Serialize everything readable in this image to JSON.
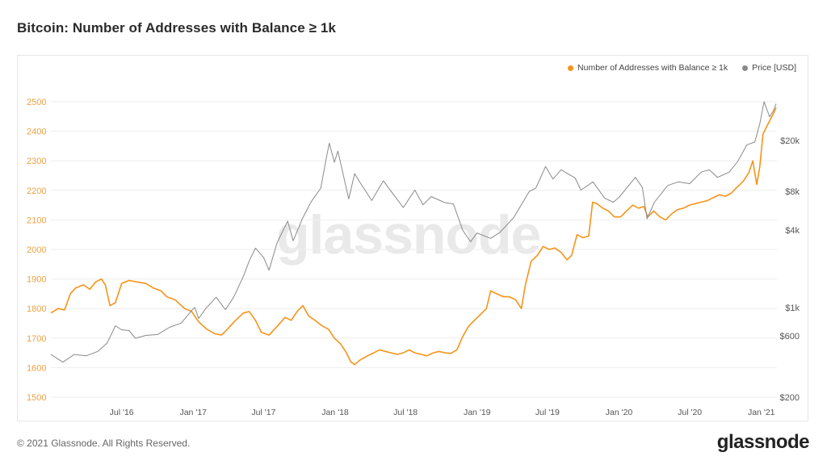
{
  "page": {
    "title": "Bitcoin: Number of Addresses with Balance ≥ 1k",
    "copyright": "© 2021 Glassnode. All Rights Reserved.",
    "brand": "glassnode",
    "watermark": "glassnode"
  },
  "colors": {
    "addresses": "#f7931a",
    "price": "#8a8a8a",
    "left_axis_text": "#f0a040",
    "right_axis_text": "#555555",
    "x_axis_text": "#555555"
  },
  "legend": [
    {
      "label": "Number of Addresses with Balance ≥ 1k",
      "color": "#f7931a"
    },
    {
      "label": "Price [USD]",
      "color": "#8a8a8a"
    }
  ],
  "chart_data": {
    "type": "line",
    "title": "Bitcoin: Number of Addresses with Balance ≥ 1k",
    "x_range": [
      "2016-01-01",
      "2021-02-10"
    ],
    "x_ticks": [
      {
        "date": "2016-07-01",
        "label": "Jul '16"
      },
      {
        "date": "2017-01-01",
        "label": "Jan '17"
      },
      {
        "date": "2017-07-01",
        "label": "Jul '17"
      },
      {
        "date": "2018-01-01",
        "label": "Jan '18"
      },
      {
        "date": "2018-07-01",
        "label": "Jul '18"
      },
      {
        "date": "2019-01-01",
        "label": "Jan '19"
      },
      {
        "date": "2019-07-01",
        "label": "Jul '19"
      },
      {
        "date": "2020-01-01",
        "label": "Jan '20"
      },
      {
        "date": "2020-07-01",
        "label": "Jul '20"
      },
      {
        "date": "2021-01-01",
        "label": "Jan '21"
      }
    ],
    "y_left": {
      "range": [
        1500,
        2500
      ],
      "ticks": [
        1500,
        1600,
        1700,
        1800,
        1900,
        2000,
        2100,
        2200,
        2300,
        2400,
        2500
      ],
      "labels": [
        "1500",
        "1600",
        "1700",
        "1800",
        "1900",
        "2000",
        "2100",
        "2200",
        "2300",
        "2400",
        "2500"
      ]
    },
    "y_right": {
      "scale": "log",
      "range": [
        200,
        40000
      ],
      "ticks": [
        200,
        600,
        1000,
        4000,
        8000,
        20000
      ],
      "labels": [
        "$200",
        "$600",
        "$1k",
        "$4k",
        "$8k",
        "$20k"
      ]
    },
    "grid": "horizontal",
    "legend_position": "top-right",
    "series": [
      {
        "name": "Number of Addresses with Balance ≥ 1k",
        "axis": "left",
        "color": "#f7931a",
        "points": [
          [
            "2016-01-01",
            1785
          ],
          [
            "2016-01-20",
            1800
          ],
          [
            "2016-02-05",
            1795
          ],
          [
            "2016-02-20",
            1850
          ],
          [
            "2016-03-05",
            1870
          ],
          [
            "2016-03-25",
            1880
          ],
          [
            "2016-04-10",
            1865
          ],
          [
            "2016-04-25",
            1890
          ],
          [
            "2016-05-10",
            1900
          ],
          [
            "2016-05-20",
            1880
          ],
          [
            "2016-06-01",
            1810
          ],
          [
            "2016-06-15",
            1820
          ],
          [
            "2016-07-01",
            1885
          ],
          [
            "2016-07-20",
            1895
          ],
          [
            "2016-08-10",
            1890
          ],
          [
            "2016-09-01",
            1885
          ],
          [
            "2016-09-20",
            1870
          ],
          [
            "2016-10-10",
            1860
          ],
          [
            "2016-10-25",
            1840
          ],
          [
            "2016-11-15",
            1830
          ],
          [
            "2016-12-10",
            1800
          ],
          [
            "2016-12-28",
            1790
          ],
          [
            "2017-01-15",
            1755
          ],
          [
            "2017-02-05",
            1730
          ],
          [
            "2017-02-25",
            1715
          ],
          [
            "2017-03-15",
            1710
          ],
          [
            "2017-03-30",
            1730
          ],
          [
            "2017-04-20",
            1760
          ],
          [
            "2017-05-10",
            1785
          ],
          [
            "2017-05-25",
            1790
          ],
          [
            "2017-06-10",
            1760
          ],
          [
            "2017-06-25",
            1720
          ],
          [
            "2017-07-15",
            1710
          ],
          [
            "2017-08-05",
            1740
          ],
          [
            "2017-08-25",
            1770
          ],
          [
            "2017-09-10",
            1760
          ],
          [
            "2017-09-25",
            1790
          ],
          [
            "2017-10-10",
            1810
          ],
          [
            "2017-10-25",
            1775
          ],
          [
            "2017-11-10",
            1760
          ],
          [
            "2017-11-30",
            1740
          ],
          [
            "2017-12-15",
            1730
          ],
          [
            "2017-12-30",
            1700
          ],
          [
            "2018-01-15",
            1680
          ],
          [
            "2018-01-30",
            1650
          ],
          [
            "2018-02-10",
            1620
          ],
          [
            "2018-02-20",
            1610
          ],
          [
            "2018-03-05",
            1625
          ],
          [
            "2018-03-25",
            1640
          ],
          [
            "2018-04-10",
            1650
          ],
          [
            "2018-04-25",
            1660
          ],
          [
            "2018-05-10",
            1655
          ],
          [
            "2018-05-25",
            1650
          ],
          [
            "2018-06-10",
            1645
          ],
          [
            "2018-06-25",
            1650
          ],
          [
            "2018-07-10",
            1660
          ],
          [
            "2018-07-25",
            1650
          ],
          [
            "2018-08-10",
            1645
          ],
          [
            "2018-08-25",
            1640
          ],
          [
            "2018-09-10",
            1650
          ],
          [
            "2018-09-25",
            1655
          ],
          [
            "2018-10-10",
            1650
          ],
          [
            "2018-10-25",
            1648
          ],
          [
            "2018-11-10",
            1660
          ],
          [
            "2018-11-25",
            1705
          ],
          [
            "2018-12-10",
            1740
          ],
          [
            "2018-12-25",
            1760
          ],
          [
            "2019-01-10",
            1780
          ],
          [
            "2019-01-25",
            1800
          ],
          [
            "2019-02-05",
            1860
          ],
          [
            "2019-02-20",
            1850
          ],
          [
            "2019-03-10",
            1840
          ],
          [
            "2019-03-25",
            1840
          ],
          [
            "2019-04-10",
            1830
          ],
          [
            "2019-04-25",
            1800
          ],
          [
            "2019-05-05",
            1880
          ],
          [
            "2019-05-20",
            1960
          ],
          [
            "2019-06-05",
            1980
          ],
          [
            "2019-06-20",
            2010
          ],
          [
            "2019-07-05",
            2000
          ],
          [
            "2019-07-20",
            2005
          ],
          [
            "2019-08-05",
            1990
          ],
          [
            "2019-08-20",
            1965
          ],
          [
            "2019-09-01",
            1980
          ],
          [
            "2019-09-15",
            2050
          ],
          [
            "2019-09-30",
            2040
          ],
          [
            "2019-10-15",
            2045
          ],
          [
            "2019-10-25",
            2160
          ],
          [
            "2019-11-05",
            2155
          ],
          [
            "2019-11-20",
            2140
          ],
          [
            "2019-12-05",
            2130
          ],
          [
            "2019-12-20",
            2110
          ],
          [
            "2020-01-05",
            2110
          ],
          [
            "2020-01-20",
            2130
          ],
          [
            "2020-02-05",
            2150
          ],
          [
            "2020-02-20",
            2140
          ],
          [
            "2020-03-05",
            2145
          ],
          [
            "2020-03-15",
            2110
          ],
          [
            "2020-03-30",
            2130
          ],
          [
            "2020-04-15",
            2110
          ],
          [
            "2020-04-30",
            2100
          ],
          [
            "2020-05-15",
            2120
          ],
          [
            "2020-05-30",
            2135
          ],
          [
            "2020-06-15",
            2140
          ],
          [
            "2020-06-30",
            2150
          ],
          [
            "2020-07-15",
            2155
          ],
          [
            "2020-07-30",
            2160
          ],
          [
            "2020-08-15",
            2165
          ],
          [
            "2020-08-30",
            2175
          ],
          [
            "2020-09-15",
            2185
          ],
          [
            "2020-09-30",
            2180
          ],
          [
            "2020-10-15",
            2190
          ],
          [
            "2020-10-30",
            2210
          ],
          [
            "2020-11-15",
            2230
          ],
          [
            "2020-11-30",
            2260
          ],
          [
            "2020-12-10",
            2300
          ],
          [
            "2020-12-20",
            2220
          ],
          [
            "2020-12-28",
            2280
          ],
          [
            "2021-01-05",
            2390
          ],
          [
            "2021-01-20",
            2430
          ],
          [
            "2021-02-01",
            2460
          ],
          [
            "2021-02-08",
            2480
          ]
        ]
      },
      {
        "name": "Price [USD]",
        "axis": "right",
        "color": "#8a8a8a",
        "points": [
          [
            "2016-01-01",
            430
          ],
          [
            "2016-02-01",
            375
          ],
          [
            "2016-03-01",
            430
          ],
          [
            "2016-04-01",
            420
          ],
          [
            "2016-05-01",
            455
          ],
          [
            "2016-05-25",
            530
          ],
          [
            "2016-06-15",
            720
          ],
          [
            "2016-07-01",
            670
          ],
          [
            "2016-07-20",
            660
          ],
          [
            "2016-08-05",
            575
          ],
          [
            "2016-09-01",
            605
          ],
          [
            "2016-10-01",
            615
          ],
          [
            "2016-11-01",
            700
          ],
          [
            "2016-12-01",
            755
          ],
          [
            "2016-12-30",
            960
          ],
          [
            "2017-01-05",
            1000
          ],
          [
            "2017-01-15",
            820
          ],
          [
            "2017-02-01",
            970
          ],
          [
            "2017-03-01",
            1200
          ],
          [
            "2017-03-25",
            960
          ],
          [
            "2017-04-15",
            1200
          ],
          [
            "2017-05-10",
            1750
          ],
          [
            "2017-05-25",
            2300
          ],
          [
            "2017-06-10",
            2900
          ],
          [
            "2017-07-01",
            2450
          ],
          [
            "2017-07-15",
            1950
          ],
          [
            "2017-08-05",
            3200
          ],
          [
            "2017-09-01",
            4700
          ],
          [
            "2017-09-15",
            3300
          ],
          [
            "2017-10-10",
            5000
          ],
          [
            "2017-11-01",
            6700
          ],
          [
            "2017-11-25",
            8500
          ],
          [
            "2017-12-10",
            15000
          ],
          [
            "2017-12-17",
            19000
          ],
          [
            "2017-12-30",
            13500
          ],
          [
            "2018-01-08",
            16500
          ],
          [
            "2018-02-05",
            7000
          ],
          [
            "2018-02-20",
            11000
          ],
          [
            "2018-03-10",
            9000
          ],
          [
            "2018-04-05",
            6800
          ],
          [
            "2018-05-05",
            9700
          ],
          [
            "2018-06-01",
            7500
          ],
          [
            "2018-06-25",
            6000
          ],
          [
            "2018-07-25",
            8200
          ],
          [
            "2018-08-15",
            6300
          ],
          [
            "2018-09-05",
            7300
          ],
          [
            "2018-10-10",
            6550
          ],
          [
            "2018-11-01",
            6400
          ],
          [
            "2018-11-25",
            4000
          ],
          [
            "2018-12-15",
            3250
          ],
          [
            "2019-01-01",
            3800
          ],
          [
            "2019-02-05",
            3450
          ],
          [
            "2019-03-01",
            3850
          ],
          [
            "2019-04-05",
            5000
          ],
          [
            "2019-05-15",
            8000
          ],
          [
            "2019-06-01",
            8500
          ],
          [
            "2019-06-26",
            12500
          ],
          [
            "2019-07-15",
            10000
          ],
          [
            "2019-08-05",
            11800
          ],
          [
            "2019-09-10",
            10200
          ],
          [
            "2019-09-25",
            8200
          ],
          [
            "2019-10-26",
            9500
          ],
          [
            "2019-11-25",
            7100
          ],
          [
            "2019-12-17",
            6600
          ],
          [
            "2020-01-01",
            7200
          ],
          [
            "2020-02-12",
            10300
          ],
          [
            "2020-03-01",
            8600
          ],
          [
            "2020-03-13",
            4900
          ],
          [
            "2020-04-01",
            6600
          ],
          [
            "2020-05-05",
            8900
          ],
          [
            "2020-06-01",
            9500
          ],
          [
            "2020-07-01",
            9200
          ],
          [
            "2020-07-30",
            11300
          ],
          [
            "2020-08-20",
            11800
          ],
          [
            "2020-09-10",
            10300
          ],
          [
            "2020-10-10",
            11300
          ],
          [
            "2020-11-01",
            13700
          ],
          [
            "2020-11-25",
            18500
          ],
          [
            "2020-12-15",
            19400
          ],
          [
            "2020-12-28",
            27000
          ],
          [
            "2021-01-08",
            40000
          ],
          [
            "2021-01-22",
            30500
          ],
          [
            "2021-02-01",
            34000
          ],
          [
            "2021-02-08",
            38500
          ]
        ]
      }
    ]
  }
}
